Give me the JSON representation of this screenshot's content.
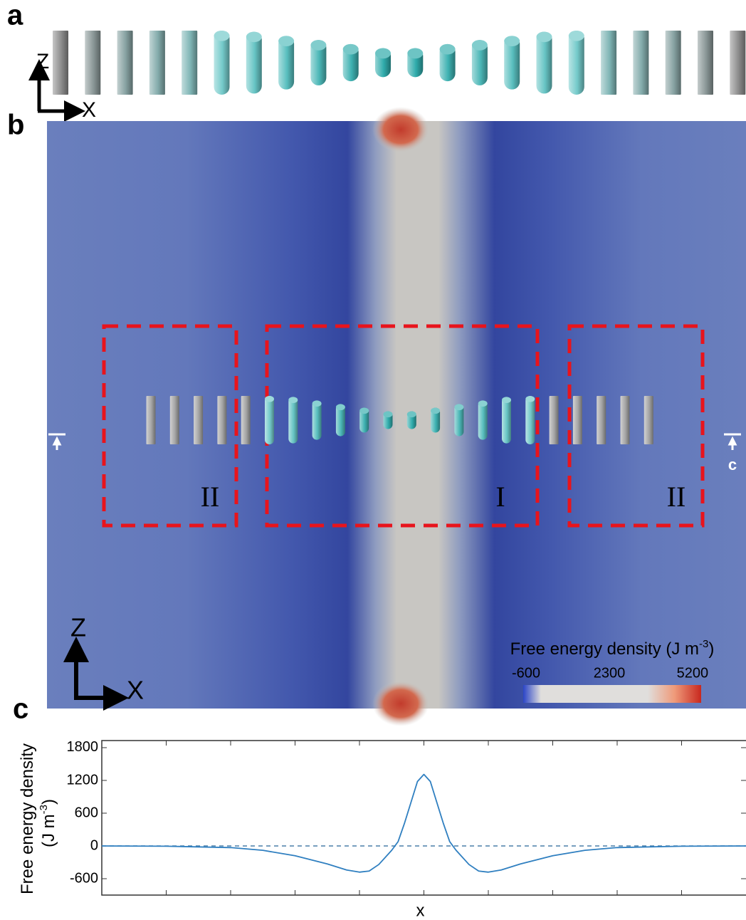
{
  "panels": {
    "a": {
      "label": "a",
      "axis_z": "Z",
      "axis_x": "X"
    },
    "b": {
      "label": "b",
      "regions": [
        "II",
        "I",
        "II"
      ],
      "cut_label": "c",
      "axis_z": "Z",
      "axis_x": "X",
      "colorbar": {
        "title": [
          "Free energy density (J m",
          "-3",
          ")"
        ],
        "clim": [
          -700,
          5500
        ],
        "ticks": [
          -600,
          2300,
          5200
        ]
      }
    },
    "c": {
      "label": "c"
    }
  },
  "chart_data": {
    "type": "line",
    "xlabel": "x",
    "ylabel": [
      "Free energy density",
      "(J m",
      "-3",
      ")"
    ],
    "x": [
      -5,
      -4,
      -3,
      -2.5,
      -2,
      -1.5,
      -1.2,
      -1,
      -0.85,
      -0.7,
      -0.5,
      -0.4,
      -0.3,
      -0.2,
      -0.1,
      0,
      0.1,
      0.2,
      0.3,
      0.4,
      0.5,
      0.7,
      0.85,
      1,
      1.2,
      1.5,
      2,
      2.5,
      3,
      4,
      5
    ],
    "series": [
      {
        "color": "#2f7fc0",
        "values": [
          0,
          -5,
          -30,
          -80,
          -180,
          -330,
          -440,
          -480,
          -460,
          -340,
          -80,
          80,
          420,
          800,
          1180,
          1310,
          1180,
          800,
          420,
          80,
          -80,
          -340,
          -460,
          -480,
          -440,
          -330,
          -180,
          -80,
          -30,
          -5,
          0
        ]
      }
    ],
    "reference_line": 0,
    "xlim": [
      -5,
      5
    ],
    "ylim": [
      -900,
      1930
    ],
    "yticks": [
      1800,
      1200,
      600,
      0,
      -600
    ]
  }
}
